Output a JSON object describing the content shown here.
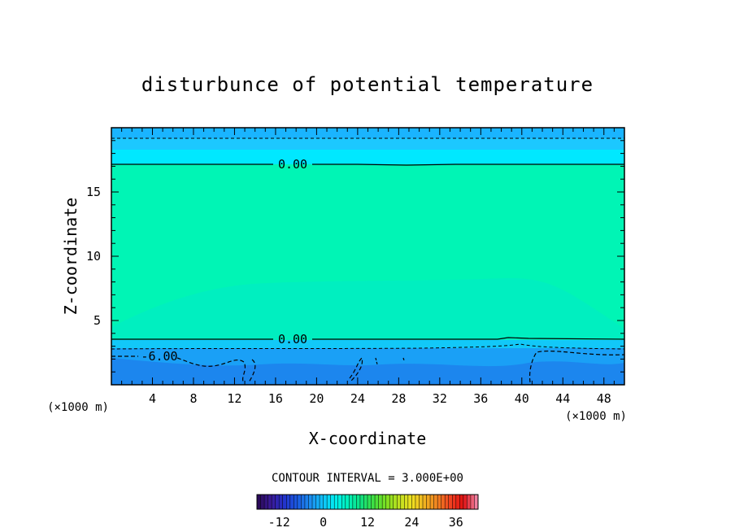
{
  "chart_data": {
    "type": "heatmap",
    "title": "disturbunce of potential temperature",
    "xlabel": "X-coordinate",
    "ylabel": "Z-coordinate",
    "x_unit_left": "(×1000 m)",
    "x_unit_right": "(×1000 m)",
    "xlim": [
      0,
      50
    ],
    "ylim": [
      0,
      20
    ],
    "x_ticks": [
      4,
      8,
      12,
      16,
      20,
      24,
      28,
      32,
      36,
      40,
      44,
      48
    ],
    "y_ticks": [
      5,
      10,
      15
    ],
    "contour_interval_text": "CONTOUR INTERVAL = 3.000E+00",
    "contour_labels": [
      {
        "text": "0.00",
        "x": 17,
        "z": 17.1
      },
      {
        "text": "0.00",
        "x": 17,
        "z": 3.5
      },
      {
        "text": "-6.00",
        "x": 4.5,
        "z": 2.2
      }
    ],
    "colorbar": {
      "ticks": [
        "-12",
        "0",
        "12",
        "24",
        "36"
      ],
      "tick_values": [
        -12,
        0,
        12,
        24,
        36
      ],
      "range": [
        -18,
        42
      ],
      "colors": [
        "#2a0a5a",
        "#3a1a9a",
        "#2233cc",
        "#1a5ae0",
        "#1c8cf0",
        "#10c0f8",
        "#00f0f0",
        "#00f0b8",
        "#10e080",
        "#40e040",
        "#80e020",
        "#c0e020",
        "#f0e020",
        "#f0b020",
        "#f08020",
        "#f04020",
        "#e01010",
        "#f080a0"
      ]
    },
    "fill_colors": {
      "top_layer": "#1ab4ff",
      "upper_band": "#00e8ff",
      "middle": "#00f5b5",
      "lower_band": "#12a6f8",
      "bottom": "#1c86ee"
    }
  }
}
